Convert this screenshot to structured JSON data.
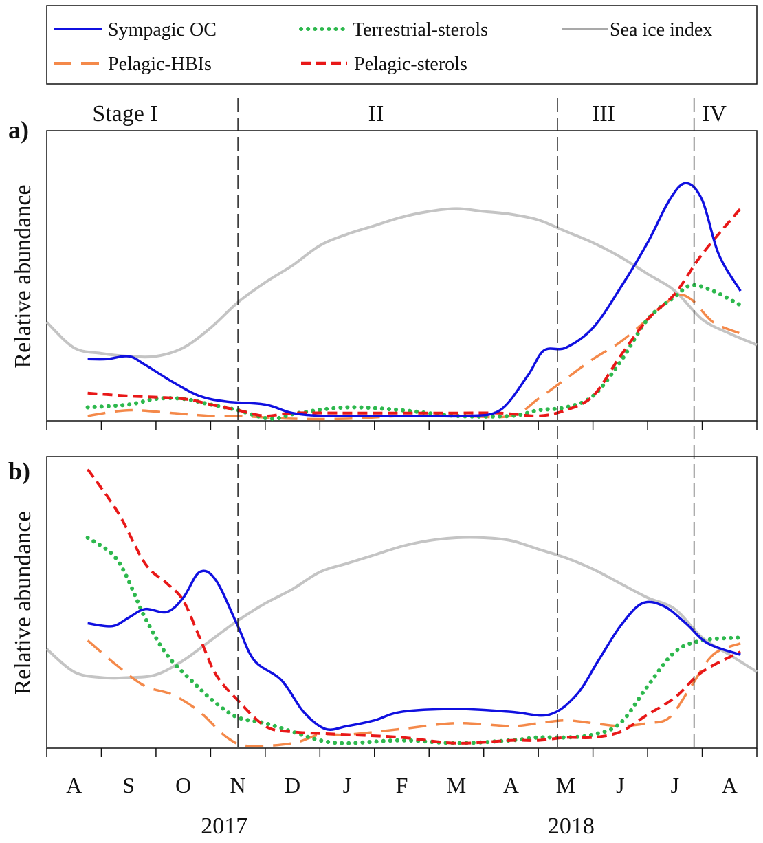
{
  "chart_data": {
    "type": "line",
    "legend": [
      {
        "name": "Sympagic OC",
        "color": "#1010e0",
        "style": "solid"
      },
      {
        "name": "Terrestrial-sterols",
        "color": "#2db84d",
        "style": "dotted"
      },
      {
        "name": "Sea ice index",
        "color": "#a9a9a9",
        "style": "solid"
      },
      {
        "name": "Pelagic-HBIs",
        "color": "#f4894a",
        "style": "dashed"
      },
      {
        "name": "Pelagic-sterols",
        "color": "#e81818",
        "style": "dashed"
      }
    ],
    "stages": [
      "Stage I",
      "II",
      "III",
      "IV"
    ],
    "stage_boundaries": [
      3.0,
      8.85,
      11.35
    ],
    "months": [
      "A",
      "S",
      "O",
      "N",
      "D",
      "J",
      "F",
      "M",
      "A",
      "M",
      "J",
      "J",
      "A"
    ],
    "years": [
      {
        "label": "2017",
        "x": 2.75
      },
      {
        "label": "2018",
        "x": 9.1
      }
    ],
    "x_range": [
      -0.5,
      12.5
    ],
    "y_range": [
      0,
      1
    ],
    "panels": [
      {
        "label": "a)",
        "ylabel": "Relative abundance",
        "series": [
          {
            "name": "Sea ice index",
            "points": [
              [
                -0.5,
                0.34
              ],
              [
                0,
                0.25
              ],
              [
                0.5,
                0.23
              ],
              [
                1,
                0.22
              ],
              [
                1.5,
                0.22
              ],
              [
                2,
                0.25
              ],
              [
                2.5,
                0.32
              ],
              [
                3,
                0.41
              ],
              [
                3.5,
                0.48
              ],
              [
                4,
                0.54
              ],
              [
                4.5,
                0.61
              ],
              [
                5,
                0.65
              ],
              [
                5.5,
                0.68
              ],
              [
                6,
                0.71
              ],
              [
                6.5,
                0.73
              ],
              [
                7,
                0.74
              ],
              [
                7.5,
                0.73
              ],
              [
                8,
                0.72
              ],
              [
                8.5,
                0.7
              ],
              [
                9,
                0.66
              ],
              [
                9.5,
                0.62
              ],
              [
                10,
                0.57
              ],
              [
                10.5,
                0.51
              ],
              [
                11,
                0.45
              ],
              [
                11.5,
                0.35
              ],
              [
                12,
                0.3
              ],
              [
                12.5,
                0.26
              ]
            ]
          },
          {
            "name": "Sympagic OC",
            "points": [
              [
                0.25,
                0.21
              ],
              [
                0.6,
                0.21
              ],
              [
                1,
                0.22
              ],
              [
                1.3,
                0.19
              ],
              [
                1.8,
                0.13
              ],
              [
                2.3,
                0.08
              ],
              [
                2.8,
                0.06
              ],
              [
                3.5,
                0.05
              ],
              [
                4,
                0.02
              ],
              [
                4.6,
                0.01
              ],
              [
                5.5,
                0.01
              ],
              [
                6.5,
                0.01
              ],
              [
                7.2,
                0.01
              ],
              [
                7.8,
                0.03
              ],
              [
                8.3,
                0.15
              ],
              [
                8.6,
                0.24
              ],
              [
                9.0,
                0.25
              ],
              [
                9.5,
                0.32
              ],
              [
                10.0,
                0.46
              ],
              [
                10.5,
                0.62
              ],
              [
                10.9,
                0.77
              ],
              [
                11.2,
                0.83
              ],
              [
                11.5,
                0.77
              ],
              [
                11.8,
                0.58
              ],
              [
                12.2,
                0.45
              ]
            ]
          },
          {
            "name": "Terrestrial-sterols",
            "points": [
              [
                0.25,
                0.04
              ],
              [
                1,
                0.05
              ],
              [
                1.5,
                0.07
              ],
              [
                2,
                0.07
              ],
              [
                2.5,
                0.05
              ],
              [
                3,
                0.03
              ],
              [
                3.6,
                0.0
              ],
              [
                4.1,
                0.02
              ],
              [
                5,
                0.04
              ],
              [
                6,
                0.03
              ],
              [
                7,
                0.01
              ],
              [
                8,
                0.01
              ],
              [
                8.5,
                0.03
              ],
              [
                9,
                0.04
              ],
              [
                9.5,
                0.08
              ],
              [
                10,
                0.2
              ],
              [
                10.5,
                0.35
              ],
              [
                11,
                0.43
              ],
              [
                11.3,
                0.47
              ],
              [
                11.7,
                0.45
              ],
              [
                12.2,
                0.4
              ]
            ]
          },
          {
            "name": "Pelagic-HBIs",
            "points": [
              [
                0.25,
                0.01
              ],
              [
                1,
                0.03
              ],
              [
                1.8,
                0.02
              ],
              [
                2.5,
                0.01
              ],
              [
                3,
                0.01
              ],
              [
                4,
                0.0
              ],
              [
                5,
                0.0
              ],
              [
                6,
                0.01
              ],
              [
                7,
                0.01
              ],
              [
                8,
                0.01
              ],
              [
                8.5,
                0.07
              ],
              [
                9,
                0.14
              ],
              [
                9.5,
                0.21
              ],
              [
                10,
                0.27
              ],
              [
                10.5,
                0.35
              ],
              [
                11,
                0.43
              ],
              [
                11.3,
                0.42
              ],
              [
                11.7,
                0.34
              ],
              [
                12.2,
                0.3
              ]
            ]
          },
          {
            "name": "Pelagic-sterols",
            "points": [
              [
                0.25,
                0.09
              ],
              [
                1,
                0.08
              ],
              [
                2,
                0.07
              ],
              [
                2.5,
                0.05
              ],
              [
                3,
                0.03
              ],
              [
                3.5,
                0.01
              ],
              [
                4,
                0.02
              ],
              [
                5,
                0.02
              ],
              [
                6,
                0.02
              ],
              [
                7,
                0.02
              ],
              [
                7.8,
                0.02
              ],
              [
                8.5,
                0.01
              ],
              [
                9,
                0.03
              ],
              [
                9.5,
                0.08
              ],
              [
                10,
                0.22
              ],
              [
                10.5,
                0.35
              ],
              [
                11,
                0.44
              ],
              [
                11.5,
                0.58
              ],
              [
                12.2,
                0.74
              ]
            ]
          }
        ]
      },
      {
        "label": "b)",
        "ylabel": "Relative abundance",
        "series": [
          {
            "name": "Sea ice index",
            "points": [
              [
                -0.5,
                0.34
              ],
              [
                0,
                0.26
              ],
              [
                0.5,
                0.24
              ],
              [
                1,
                0.24
              ],
              [
                1.5,
                0.25
              ],
              [
                2,
                0.3
              ],
              [
                2.5,
                0.37
              ],
              [
                3,
                0.44
              ],
              [
                3.5,
                0.5
              ],
              [
                4,
                0.55
              ],
              [
                4.5,
                0.61
              ],
              [
                5,
                0.64
              ],
              [
                5.5,
                0.67
              ],
              [
                6,
                0.7
              ],
              [
                6.5,
                0.72
              ],
              [
                7,
                0.73
              ],
              [
                7.5,
                0.73
              ],
              [
                8,
                0.72
              ],
              [
                8.5,
                0.69
              ],
              [
                9,
                0.66
              ],
              [
                9.5,
                0.62
              ],
              [
                10,
                0.57
              ],
              [
                10.5,
                0.52
              ],
              [
                11,
                0.48
              ],
              [
                11.5,
                0.38
              ],
              [
                12,
                0.32
              ],
              [
                12.5,
                0.26
              ]
            ]
          },
          {
            "name": "Sympagic OC",
            "points": [
              [
                0.25,
                0.43
              ],
              [
                0.7,
                0.42
              ],
              [
                1,
                0.45
              ],
              [
                1.3,
                0.48
              ],
              [
                1.7,
                0.47
              ],
              [
                2,
                0.52
              ],
              [
                2.3,
                0.61
              ],
              [
                2.6,
                0.58
              ],
              [
                3,
                0.42
              ],
              [
                3.3,
                0.3
              ],
              [
                3.8,
                0.23
              ],
              [
                4.2,
                0.12
              ],
              [
                4.6,
                0.06
              ],
              [
                5,
                0.07
              ],
              [
                5.5,
                0.09
              ],
              [
                6,
                0.12
              ],
              [
                7,
                0.13
              ],
              [
                8,
                0.12
              ],
              [
                8.7,
                0.11
              ],
              [
                9.2,
                0.18
              ],
              [
                9.6,
                0.3
              ],
              [
                10,
                0.42
              ],
              [
                10.4,
                0.5
              ],
              [
                10.8,
                0.49
              ],
              [
                11.2,
                0.43
              ],
              [
                11.6,
                0.36
              ],
              [
                12.2,
                0.32
              ]
            ]
          },
          {
            "name": "Terrestrial-sterols",
            "points": [
              [
                0.25,
                0.73
              ],
              [
                0.8,
                0.65
              ],
              [
                1.3,
                0.45
              ],
              [
                1.7,
                0.32
              ],
              [
                2.2,
                0.22
              ],
              [
                2.6,
                0.15
              ],
              [
                3,
                0.1
              ],
              [
                3.5,
                0.08
              ],
              [
                4,
                0.05
              ],
              [
                4.5,
                0.02
              ],
              [
                5,
                0.01
              ],
              [
                6,
                0.02
              ],
              [
                7,
                0.01
              ],
              [
                8,
                0.02
              ],
              [
                8.5,
                0.03
              ],
              [
                9,
                0.03
              ],
              [
                9.5,
                0.04
              ],
              [
                10,
                0.08
              ],
              [
                10.5,
                0.21
              ],
              [
                11,
                0.33
              ],
              [
                11.5,
                0.37
              ],
              [
                12.2,
                0.38
              ]
            ]
          },
          {
            "name": "Pelagic-HBIs",
            "points": [
              [
                0.25,
                0.37
              ],
              [
                0.8,
                0.28
              ],
              [
                1.3,
                0.21
              ],
              [
                1.8,
                0.18
              ],
              [
                2.3,
                0.12
              ],
              [
                2.8,
                0.03
              ],
              [
                3.2,
                0.0
              ],
              [
                4,
                0.01
              ],
              [
                4.5,
                0.04
              ],
              [
                5,
                0.04
              ],
              [
                6,
                0.06
              ],
              [
                7,
                0.08
              ],
              [
                8,
                0.07
              ],
              [
                8.5,
                0.08
              ],
              [
                9,
                0.09
              ],
              [
                9.5,
                0.08
              ],
              [
                10,
                0.07
              ],
              [
                10.5,
                0.08
              ],
              [
                10.9,
                0.1
              ],
              [
                11.3,
                0.21
              ],
              [
                11.7,
                0.32
              ],
              [
                12.2,
                0.36
              ]
            ]
          },
          {
            "name": "Pelagic-sterols",
            "points": [
              [
                0.25,
                0.97
              ],
              [
                0.8,
                0.82
              ],
              [
                1.3,
                0.64
              ],
              [
                1.7,
                0.57
              ],
              [
                2,
                0.51
              ],
              [
                2.3,
                0.38
              ],
              [
                2.6,
                0.25
              ],
              [
                3,
                0.16
              ],
              [
                3.5,
                0.07
              ],
              [
                4,
                0.05
              ],
              [
                5,
                0.04
              ],
              [
                6,
                0.03
              ],
              [
                7,
                0.01
              ],
              [
                8,
                0.02
              ],
              [
                8.5,
                0.02
              ],
              [
                9,
                0.03
              ],
              [
                9.5,
                0.03
              ],
              [
                10,
                0.05
              ],
              [
                10.5,
                0.11
              ],
              [
                11,
                0.17
              ],
              [
                11.5,
                0.26
              ],
              [
                12.2,
                0.33
              ]
            ]
          }
        ]
      }
    ]
  }
}
